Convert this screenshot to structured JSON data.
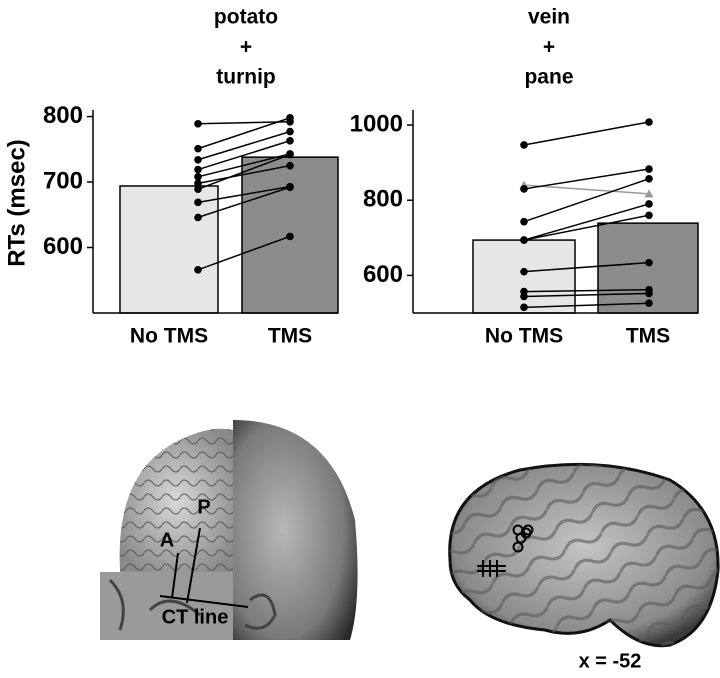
{
  "chart_data": [
    {
      "type": "bar",
      "title_lines": [
        "potato",
        "+",
        "turnip"
      ],
      "y_label": "RTs (msec)",
      "categories": [
        "No TMS",
        "TMS"
      ],
      "values": [
        694,
        738
      ],
      "colors": [
        "#e6e6e6",
        "#8c8c8c"
      ],
      "ylim": [
        500,
        810
      ],
      "yticks": [
        600,
        700,
        800
      ],
      "pairs": [
        {
          "values": [
            789,
            792
          ],
          "color": "#000000"
        },
        {
          "values": [
            751,
            798
          ],
          "color": "#000000"
        },
        {
          "values": [
            734,
            777
          ],
          "color": "#000000"
        },
        {
          "values": [
            719,
            763
          ],
          "color": "#000000"
        },
        {
          "values": [
            708,
            743
          ],
          "color": "#000000"
        },
        {
          "values": [
            698,
            725
          ],
          "color": "#000000"
        },
        {
          "values": [
            689,
            742
          ],
          "color": "#000000"
        },
        {
          "values": [
            669,
            693
          ],
          "color": "#000000"
        },
        {
          "values": [
            646,
            692
          ],
          "color": "#000000"
        },
        {
          "values": [
            566,
            617
          ],
          "color": "#000000"
        }
      ]
    },
    {
      "type": "bar",
      "title_lines": [
        "vein",
        "+",
        "pane"
      ],
      "categories": [
        "No TMS",
        "TMS"
      ],
      "values": [
        694,
        739
      ],
      "colors": [
        "#e6e6e6",
        "#8c8c8c"
      ],
      "ylim": [
        500,
        1040
      ],
      "yticks": [
        600,
        800,
        1000
      ],
      "pairs": [
        {
          "values": [
            947,
            1008
          ],
          "color": "#000000"
        },
        {
          "values": [
            840,
            817
          ],
          "color": "#999999"
        },
        {
          "values": [
            830,
            883
          ],
          "color": "#000000"
        },
        {
          "values": [
            743,
            857
          ],
          "color": "#000000"
        },
        {
          "values": [
            694,
            790
          ],
          "color": "#000000"
        },
        {
          "values": [
            694,
            760
          ],
          "color": "#000000"
        },
        {
          "values": [
            610,
            634
          ],
          "color": "#000000"
        },
        {
          "values": [
            557,
            562
          ],
          "color": "#000000"
        },
        {
          "values": [
            544,
            552
          ],
          "color": "#000000"
        },
        {
          "values": [
            515,
            526
          ],
          "color": "#000000"
        }
      ]
    }
  ],
  "images": {
    "left_labels": [
      "A",
      "P",
      "CT line"
    ],
    "right_label": "x = -52"
  }
}
